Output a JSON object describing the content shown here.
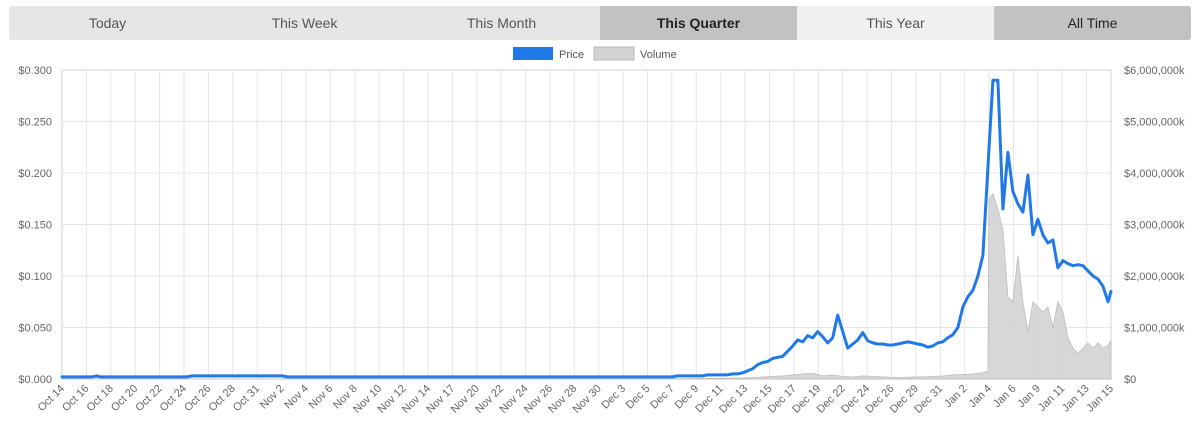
{
  "tabs": [
    {
      "label": "Today",
      "state": "normal"
    },
    {
      "label": "This Week",
      "state": "normal"
    },
    {
      "label": "This Month",
      "state": "normal"
    },
    {
      "label": "This Quarter",
      "state": "active"
    },
    {
      "label": "This Year",
      "state": "light"
    },
    {
      "label": "All Time",
      "state": "dark"
    }
  ],
  "colors": {
    "price": "#1f7ae8",
    "volume_fill": "#d3d3d3",
    "volume_stroke": "#b8b8b8",
    "grid": "#e5e5e5",
    "axis_text": "#666666"
  },
  "chart_data": {
    "type": "line",
    "legend": [
      {
        "label": "Price",
        "color": "#1f7ae8"
      },
      {
        "label": "Volume",
        "color": "#d3d3d3"
      }
    ],
    "legend_position": "top-center",
    "grid": true,
    "x_ticks": [
      "Oct 14",
      "Oct 16",
      "Oct 18",
      "Oct 20",
      "Oct 22",
      "Oct 24",
      "Oct 26",
      "Oct 28",
      "Oct 31",
      "Nov 2",
      "Nov 4",
      "Nov 6",
      "Nov 8",
      "Nov 10",
      "Nov 12",
      "Nov 14",
      "Nov 17",
      "Nov 20",
      "Nov 22",
      "Nov 24",
      "Nov 26",
      "Nov 28",
      "Nov 30",
      "Dec 3",
      "Dec 5",
      "Dec 7",
      "Dec 9",
      "Dec 11",
      "Dec 13",
      "Dec 15",
      "Dec 17",
      "Dec 19",
      "Dec 22",
      "Dec 24",
      "Dec 26",
      "Dec 29",
      "Dec 31",
      "Jan 2",
      "Jan 4",
      "Jan 6",
      "Jan 9",
      "Jan 11",
      "Jan 13",
      "Jan 15"
    ],
    "y_left": {
      "ticks": [
        "$0.300",
        "$0.250",
        "$0.200",
        "$0.150",
        "$0.100",
        "$0.050",
        "$0.000"
      ],
      "ylim": [
        0,
        0.3
      ]
    },
    "y_right": {
      "ticks": [
        "$6,000,000k",
        "$5,000,000k",
        "$4,000,000k",
        "$3,000,000k",
        "$2,000,000k",
        "$1,000,000k",
        "$0"
      ],
      "ylim": [
        0,
        6000000
      ]
    },
    "series": [
      {
        "name": "Price",
        "axis": "left",
        "points": [
          [
            0,
            0.002
          ],
          [
            5,
            0.002
          ],
          [
            10,
            0.002
          ],
          [
            15,
            0.002
          ],
          [
            20,
            0.002
          ],
          [
            25,
            0.002
          ],
          [
            30,
            0.002
          ],
          [
            35,
            0.003
          ],
          [
            38,
            0.002
          ],
          [
            40,
            0.002
          ],
          [
            45,
            0.002
          ],
          [
            50,
            0.002
          ],
          [
            55,
            0.002
          ],
          [
            60,
            0.002
          ],
          [
            65,
            0.002
          ],
          [
            70,
            0.002
          ],
          [
            75,
            0.002
          ],
          [
            80,
            0.002
          ],
          [
            85,
            0.002
          ],
          [
            90,
            0.002
          ],
          [
            95,
            0.002
          ],
          [
            100,
            0.002
          ],
          [
            105,
            0.002
          ],
          [
            110,
            0.002
          ],
          [
            115,
            0.002
          ],
          [
            120,
            0.002
          ],
          [
            125,
            0.002
          ],
          [
            130,
            0.003
          ],
          [
            135,
            0.003
          ],
          [
            140,
            0.003
          ],
          [
            145,
            0.003
          ],
          [
            150,
            0.003
          ],
          [
            155,
            0.003
          ],
          [
            160,
            0.003
          ],
          [
            165,
            0.003
          ],
          [
            170,
            0.003
          ],
          [
            175,
            0.003
          ],
          [
            180,
            0.003
          ],
          [
            185,
            0.003
          ],
          [
            190,
            0.003
          ],
          [
            195,
            0.003
          ],
          [
            200,
            0.003
          ],
          [
            205,
            0.003
          ],
          [
            210,
            0.003
          ],
          [
            215,
            0.003
          ],
          [
            220,
            0.003
          ],
          [
            225,
            0.002
          ],
          [
            230,
            0.002
          ],
          [
            235,
            0.002
          ],
          [
            240,
            0.002
          ],
          [
            245,
            0.002
          ],
          [
            250,
            0.002
          ],
          [
            255,
            0.002
          ],
          [
            260,
            0.002
          ],
          [
            265,
            0.002
          ],
          [
            270,
            0.002
          ],
          [
            275,
            0.002
          ],
          [
            280,
            0.002
          ],
          [
            285,
            0.002
          ],
          [
            290,
            0.002
          ],
          [
            295,
            0.002
          ],
          [
            300,
            0.002
          ],
          [
            305,
            0.002
          ],
          [
            310,
            0.002
          ],
          [
            315,
            0.002
          ],
          [
            320,
            0.002
          ],
          [
            325,
            0.002
          ],
          [
            330,
            0.002
          ],
          [
            335,
            0.002
          ],
          [
            340,
            0.002
          ],
          [
            345,
            0.002
          ],
          [
            350,
            0.002
          ],
          [
            355,
            0.002
          ],
          [
            360,
            0.002
          ],
          [
            365,
            0.002
          ],
          [
            370,
            0.002
          ],
          [
            375,
            0.002
          ],
          [
            380,
            0.002
          ],
          [
            385,
            0.002
          ],
          [
            390,
            0.002
          ],
          [
            395,
            0.002
          ],
          [
            400,
            0.002
          ],
          [
            405,
            0.002
          ],
          [
            410,
            0.002
          ],
          [
            415,
            0.002
          ],
          [
            420,
            0.002
          ],
          [
            425,
            0.002
          ],
          [
            430,
            0.002
          ],
          [
            435,
            0.002
          ],
          [
            440,
            0.002
          ],
          [
            445,
            0.002
          ],
          [
            450,
            0.002
          ],
          [
            455,
            0.002
          ],
          [
            460,
            0.002
          ],
          [
            465,
            0.002
          ],
          [
            470,
            0.002
          ],
          [
            475,
            0.002
          ],
          [
            480,
            0.002
          ],
          [
            485,
            0.002
          ],
          [
            490,
            0.002
          ],
          [
            495,
            0.002
          ],
          [
            500,
            0.002
          ],
          [
            505,
            0.002
          ],
          [
            510,
            0.002
          ],
          [
            515,
            0.002
          ],
          [
            520,
            0.002
          ],
          [
            525,
            0.002
          ],
          [
            530,
            0.002
          ],
          [
            535,
            0.002
          ],
          [
            540,
            0.002
          ],
          [
            545,
            0.002
          ],
          [
            550,
            0.002
          ],
          [
            555,
            0.002
          ],
          [
            560,
            0.002
          ],
          [
            565,
            0.002
          ],
          [
            570,
            0.002
          ],
          [
            575,
            0.002
          ],
          [
            580,
            0.002
          ],
          [
            585,
            0.002
          ],
          [
            590,
            0.002
          ],
          [
            595,
            0.002
          ],
          [
            600,
            0.002
          ],
          [
            605,
            0.002
          ],
          [
            610,
            0.002
          ],
          [
            615,
            0.003
          ],
          [
            620,
            0.003
          ],
          [
            625,
            0.003
          ],
          [
            630,
            0.003
          ],
          [
            635,
            0.003
          ],
          [
            640,
            0.003
          ],
          [
            645,
            0.004
          ],
          [
            650,
            0.004
          ],
          [
            655,
            0.004
          ],
          [
            660,
            0.004
          ],
          [
            665,
            0.004
          ],
          [
            670,
            0.005
          ],
          [
            675,
            0.005
          ],
          [
            680,
            0.006
          ],
          [
            685,
            0.008
          ],
          [
            690,
            0.01
          ],
          [
            695,
            0.014
          ],
          [
            700,
            0.016
          ],
          [
            705,
            0.017
          ],
          [
            710,
            0.02
          ],
          [
            715,
            0.021
          ],
          [
            720,
            0.022
          ],
          [
            725,
            0.027
          ],
          [
            730,
            0.032
          ],
          [
            735,
            0.038
          ],
          [
            740,
            0.036
          ],
          [
            745,
            0.042
          ],
          [
            750,
            0.04
          ],
          [
            755,
            0.046
          ],
          [
            760,
            0.041
          ],
          [
            765,
            0.035
          ],
          [
            770,
            0.04
          ],
          [
            775,
            0.062
          ],
          [
            780,
            0.046
          ],
          [
            785,
            0.03
          ],
          [
            790,
            0.034
          ],
          [
            795,
            0.038
          ],
          [
            800,
            0.045
          ],
          [
            805,
            0.037
          ],
          [
            810,
            0.035
          ],
          [
            815,
            0.034
          ],
          [
            820,
            0.034
          ],
          [
            825,
            0.033
          ],
          [
            830,
            0.033
          ],
          [
            835,
            0.034
          ],
          [
            840,
            0.035
          ],
          [
            845,
            0.036
          ],
          [
            850,
            0.035
          ],
          [
            855,
            0.034
          ],
          [
            860,
            0.033
          ],
          [
            865,
            0.031
          ],
          [
            870,
            0.032
          ],
          [
            875,
            0.035
          ],
          [
            880,
            0.036
          ],
          [
            885,
            0.04
          ],
          [
            890,
            0.043
          ],
          [
            895,
            0.05
          ],
          [
            900,
            0.07
          ],
          [
            905,
            0.08
          ],
          [
            910,
            0.086
          ],
          [
            915,
            0.1
          ],
          [
            920,
            0.12
          ],
          [
            925,
            0.205
          ],
          [
            930,
            0.29
          ],
          [
            935,
            0.29
          ],
          [
            940,
            0.165
          ],
          [
            945,
            0.22
          ],
          [
            950,
            0.182
          ],
          [
            955,
            0.17
          ],
          [
            960,
            0.162
          ],
          [
            965,
            0.198
          ],
          [
            970,
            0.14
          ],
          [
            975,
            0.155
          ],
          [
            980,
            0.14
          ],
          [
            985,
            0.132
          ],
          [
            990,
            0.135
          ],
          [
            995,
            0.108
          ],
          [
            1000,
            0.115
          ],
          [
            1005,
            0.112
          ],
          [
            1010,
            0.11
          ],
          [
            1015,
            0.111
          ],
          [
            1020,
            0.11
          ],
          [
            1025,
            0.105
          ],
          [
            1030,
            0.1
          ],
          [
            1035,
            0.097
          ],
          [
            1040,
            0.09
          ],
          [
            1045,
            0.075
          ],
          [
            1048,
            0.085
          ]
        ]
      },
      {
        "name": "Volume",
        "axis": "right",
        "points": [
          [
            0,
            0
          ],
          [
            600,
            0
          ],
          [
            640,
            10000
          ],
          [
            680,
            20000
          ],
          [
            690,
            25000
          ],
          [
            700,
            40000
          ],
          [
            720,
            60000
          ],
          [
            730,
            80000
          ],
          [
            740,
            100000
          ],
          [
            750,
            110000
          ],
          [
            760,
            60000
          ],
          [
            770,
            80000
          ],
          [
            780,
            50000
          ],
          [
            790,
            40000
          ],
          [
            800,
            60000
          ],
          [
            810,
            50000
          ],
          [
            820,
            40000
          ],
          [
            830,
            30000
          ],
          [
            840,
            30000
          ],
          [
            850,
            40000
          ],
          [
            860,
            40000
          ],
          [
            870,
            50000
          ],
          [
            880,
            60000
          ],
          [
            890,
            80000
          ],
          [
            900,
            90000
          ],
          [
            910,
            100000
          ],
          [
            920,
            120000
          ],
          [
            925,
            150000
          ],
          [
            926,
            3500000
          ],
          [
            930,
            3600000
          ],
          [
            935,
            3300000
          ],
          [
            940,
            2900000
          ],
          [
            945,
            1600000
          ],
          [
            950,
            1500000
          ],
          [
            955,
            2400000
          ],
          [
            960,
            1500000
          ],
          [
            965,
            900000
          ],
          [
            970,
            1500000
          ],
          [
            975,
            1400000
          ],
          [
            980,
            1300000
          ],
          [
            985,
            1400000
          ],
          [
            990,
            1000000
          ],
          [
            995,
            1500000
          ],
          [
            1000,
            1300000
          ],
          [
            1005,
            800000
          ],
          [
            1010,
            600000
          ],
          [
            1015,
            500000
          ],
          [
            1020,
            600000
          ],
          [
            1025,
            700000
          ],
          [
            1030,
            600000
          ],
          [
            1035,
            700000
          ],
          [
            1040,
            600000
          ],
          [
            1045,
            650000
          ],
          [
            1048,
            750000
          ]
        ]
      }
    ]
  }
}
